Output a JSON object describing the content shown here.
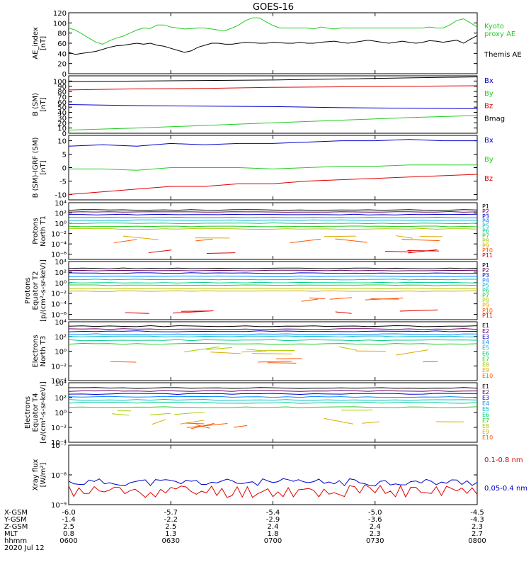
{
  "title": "GOES-16",
  "colors": {
    "black": "#000000",
    "blue": "#0000cc",
    "green": "#22cc22",
    "red": "#dd0000",
    "p": [
      "#000000",
      "#660066",
      "#0000cc",
      "#0088ff",
      "#00bbcc",
      "#00cc88",
      "#22cc22",
      "#aacc00",
      "#ddaa00",
      "#ff5500",
      "#dd0000"
    ],
    "e": [
      "#000000",
      "#660066",
      "#0000cc",
      "#0088ff",
      "#00bbcc",
      "#00cc88",
      "#22cc22",
      "#aacc00",
      "#ddaa00",
      "#ff5500",
      "#dd0000"
    ]
  },
  "chart_data": [
    {
      "type": "line",
      "id": "ae",
      "ylabel": "AE_index\n[nT]",
      "ylim": [
        0,
        120
      ],
      "yticks": [
        "0",
        "20",
        "40",
        "60",
        "80",
        "100",
        "120"
      ],
      "series": [
        {
          "name": "Kyoto\nproxy AE",
          "color": "green",
          "x": [
            0,
            2,
            4,
            6,
            8,
            10,
            12,
            14,
            16,
            18,
            20,
            22,
            24,
            26,
            28,
            30,
            32,
            34,
            36,
            38,
            40,
            42,
            44,
            46,
            48,
            50,
            52,
            54,
            56,
            58,
            60,
            62,
            64,
            66,
            68,
            70,
            72,
            74,
            76,
            78,
            80,
            82,
            84,
            86,
            88,
            90,
            92,
            94,
            96,
            98,
            100,
            102,
            104,
            106,
            108,
            110,
            112,
            114,
            116,
            118,
            120
          ],
          "y": [
            90,
            86,
            78,
            70,
            62,
            58,
            65,
            70,
            74,
            80,
            86,
            90,
            89,
            96,
            96,
            92,
            90,
            88,
            89,
            90,
            90,
            88,
            86,
            85,
            90,
            96,
            105,
            110,
            110,
            102,
            95,
            90,
            90,
            90,
            90,
            90,
            88,
            92,
            90,
            88,
            90,
            90,
            90,
            90,
            90,
            90,
            90,
            90,
            90,
            90,
            90,
            90,
            90,
            92,
            90,
            90,
            96,
            105,
            108,
            100,
            92
          ]
        },
        {
          "name": "Themis AE",
          "color": "black",
          "x": [
            0,
            2,
            4,
            6,
            8,
            10,
            12,
            14,
            16,
            18,
            20,
            22,
            24,
            26,
            28,
            30,
            32,
            34,
            36,
            38,
            40,
            42,
            44,
            46,
            48,
            50,
            52,
            54,
            56,
            58,
            60,
            62,
            64,
            66,
            68,
            70,
            72,
            74,
            76,
            78,
            80,
            82,
            84,
            86,
            88,
            90,
            92,
            94,
            96,
            98,
            100,
            102,
            104,
            106,
            108,
            110,
            112,
            114,
            116,
            118,
            120
          ],
          "y": [
            42,
            38,
            40,
            42,
            44,
            48,
            52,
            55,
            56,
            58,
            60,
            58,
            60,
            56,
            54,
            50,
            46,
            42,
            45,
            52,
            56,
            60,
            60,
            58,
            58,
            60,
            62,
            61,
            60,
            60,
            62,
            61,
            60,
            60,
            62,
            60,
            60,
            62,
            63,
            64,
            62,
            60,
            62,
            64,
            66,
            64,
            62,
            60,
            62,
            64,
            62,
            60,
            62,
            65,
            64,
            62,
            64,
            66,
            60,
            68,
            75
          ]
        }
      ]
    },
    {
      "type": "line",
      "id": "bsm",
      "ylabel": "B (SM)\n[nT]",
      "ylim": [
        0,
        110
      ],
      "yticks": [
        "0",
        "10",
        "20",
        "30",
        "40",
        "50",
        "60",
        "70",
        "80",
        "90",
        "100"
      ],
      "series": [
        {
          "name": "Bx",
          "color": "blue",
          "x": [
            0,
            20,
            40,
            60,
            80,
            100,
            120
          ],
          "y": [
            55,
            53,
            52,
            51,
            49,
            48,
            47
          ]
        },
        {
          "name": "By",
          "color": "green",
          "x": [
            0,
            20,
            40,
            60,
            80,
            100,
            120
          ],
          "y": [
            6,
            10,
            15,
            20,
            25,
            30,
            34
          ]
        },
        {
          "name": "Bz",
          "color": "red",
          "x": [
            0,
            20,
            40,
            60,
            80,
            100,
            120
          ],
          "y": [
            83,
            85,
            86,
            88,
            89,
            90,
            91
          ]
        },
        {
          "name": "Bmag",
          "color": "black",
          "x": [
            0,
            20,
            40,
            60,
            80,
            100,
            120
          ],
          "y": [
            99,
            100,
            101,
            102,
            104,
            106,
            108
          ]
        }
      ]
    },
    {
      "type": "line",
      "id": "digrf",
      "ylabel": "B (SM)-IGRF (SM)\n[nT]",
      "ylim": [
        -12,
        12
      ],
      "yticks": [
        "-10",
        "-5",
        "0",
        "5",
        "10"
      ],
      "series": [
        {
          "name": "Bx",
          "color": "blue",
          "x": [
            0,
            10,
            20,
            30,
            40,
            50,
            60,
            70,
            80,
            90,
            100,
            110,
            120
          ],
          "y": [
            8,
            8.5,
            8,
            9,
            8.5,
            9,
            9,
            9.5,
            10,
            10,
            10.5,
            10,
            10
          ]
        },
        {
          "name": "By",
          "color": "green",
          "x": [
            0,
            10,
            20,
            30,
            40,
            50,
            60,
            70,
            80,
            90,
            100,
            110,
            120
          ],
          "y": [
            -0.5,
            -0.5,
            -1,
            0,
            0,
            0,
            -0.5,
            0,
            0.5,
            0.5,
            1,
            1,
            1
          ]
        },
        {
          "name": "Bz",
          "color": "red",
          "x": [
            0,
            10,
            20,
            30,
            40,
            50,
            60,
            70,
            80,
            90,
            100,
            110,
            120
          ],
          "y": [
            -10,
            -9,
            -8,
            -7,
            -7,
            -6,
            -6,
            -5,
            -4.5,
            -4,
            -3.5,
            -3,
            -2.5
          ]
        }
      ]
    },
    {
      "type": "line",
      "id": "pn",
      "ylabel": "Protons\nNorth T1",
      "log": true,
      "ylim": [
        -7,
        4
      ],
      "yticks": [
        "10⁻⁶",
        "10⁻⁴",
        "10⁻²",
        "10⁰",
        "10²",
        "10⁴"
      ],
      "levels": [
        2.6,
        2.2,
        1.7,
        1.1,
        0.6,
        0,
        -0.6,
        -1.1,
        -2.8,
        -3.4,
        -5.5
      ],
      "labels": [
        "P1",
        "P2",
        "P3",
        "P4",
        "P5",
        "P6",
        "P7",
        "P8",
        "P9",
        "P10",
        "P11"
      ]
    },
    {
      "type": "line",
      "id": "pe",
      "ylabel": "Protons\nEquator T2\n[p/(cm²-s-sr-keV)]",
      "log": true,
      "ylim": [
        -7,
        4
      ],
      "yticks": [
        "10⁻⁶",
        "10⁻⁴",
        "10⁻²",
        "10⁰",
        "10²",
        "10⁴"
      ],
      "levels": [
        2.7,
        2.3,
        1.8,
        1.2,
        0.6,
        0,
        -0.5,
        -1.1,
        -1.6,
        -3.2,
        -5.5
      ],
      "labels": [
        "P1",
        "P2",
        "P3",
        "P4",
        "P5",
        "P6",
        "P7",
        "P8",
        "P9",
        "P10",
        "P11"
      ]
    },
    {
      "type": "line",
      "id": "en",
      "ylabel": "Electrons\nNorth T3",
      "log": true,
      "ylim": [
        -4,
        4
      ],
      "yticks": [
        "10⁻⁴",
        "10⁻²",
        "10⁰",
        "10²",
        "10⁴"
      ],
      "levels": [
        3.4,
        3.0,
        2.7,
        2.3,
        2.0,
        1.5,
        1.0,
        0.3,
        -0.2,
        -1.3
      ],
      "labels": [
        "E1",
        "E2",
        "E3",
        "E4",
        "E5",
        "E6",
        "E7",
        "E8",
        "E9",
        "E10"
      ]
    },
    {
      "type": "line",
      "id": "ee",
      "ylabel": "Electrons\nEquator T4\n[e/(cm²-s-sr-keV)]",
      "log": true,
      "ylim": [
        -4,
        4
      ],
      "yticks": [
        "10⁻⁴",
        "10⁻²",
        "10⁰",
        "10²",
        "10⁴"
      ],
      "levels": [
        3.3,
        2.9,
        2.5,
        2.1,
        1.7,
        1.3,
        0.7,
        0.0,
        -1.2,
        -1.8
      ],
      "labels": [
        "E1",
        "E2",
        "E3",
        "E4",
        "E5",
        "E6",
        "E7",
        "E8",
        "E9",
        "E10"
      ]
    },
    {
      "type": "line",
      "id": "xray",
      "ylabel": "Xray flux\n[W/m²]",
      "log": true,
      "ylim": [
        -9,
        -7
      ],
      "yticks": [
        "10⁻⁹",
        "10⁻⁸",
        "10⁻⁷"
      ],
      "series": [
        {
          "name": "0.1-0.8 nm",
          "color": "red"
        },
        {
          "name": "0.05-0.4 nm",
          "color": "blue"
        }
      ]
    }
  ],
  "xaxis": {
    "ticks": [
      {
        "xgsm": "-6.0",
        "ygsm": "-1.4",
        "zgsm": "2.5",
        "mlt": "0.8",
        "hhmm": "0600"
      },
      {
        "xgsm": "-5.7",
        "ygsm": "-2.2",
        "zgsm": "2.5",
        "mlt": "1.3",
        "hhmm": "0630"
      },
      {
        "xgsm": "-5.4",
        "ygsm": "-2.9",
        "zgsm": "2.4",
        "mlt": "1.8",
        "hhmm": "0700"
      },
      {
        "xgsm": "-5.0",
        "ygsm": "-3.6",
        "zgsm": "2.4",
        "mlt": "2.3",
        "hhmm": "0730"
      },
      {
        "xgsm": "-4.5",
        "ygsm": "-4.3",
        "zgsm": "2.3",
        "mlt": "2.7",
        "hhmm": "0800"
      }
    ],
    "row_labels": [
      "X-GSM",
      "Y-GSM",
      "Z-GSM",
      "MLT",
      "hhmm"
    ],
    "date": "2020 Jul 12"
  }
}
